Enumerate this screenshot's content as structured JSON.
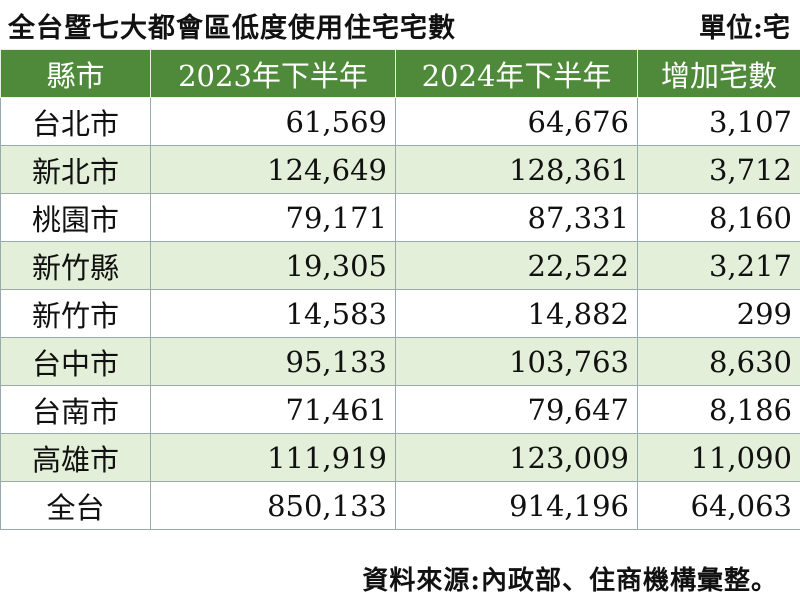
{
  "header": {
    "title": "全台暨七大都會區低度使用住宅宅數",
    "unit": "單位:宅"
  },
  "table": {
    "columns": [
      "縣市",
      "2023年下半年",
      "2024年下半年",
      "增加宅數"
    ],
    "rows": [
      [
        "台北市",
        "61,569",
        "64,676",
        "3,107"
      ],
      [
        "新北市",
        "124,649",
        "128,361",
        "3,712"
      ],
      [
        "桃園市",
        "79,171",
        "87,331",
        "8,160"
      ],
      [
        "新竹縣",
        "19,305",
        "22,522",
        "3,217"
      ],
      [
        "新竹市",
        "14,583",
        "14,882",
        "299"
      ],
      [
        "台中市",
        "95,133",
        "103,763",
        "8,630"
      ],
      [
        "台南市",
        "71,461",
        "79,647",
        "8,186"
      ],
      [
        "高雄市",
        "111,919",
        "123,009",
        "11,090"
      ],
      [
        "全台",
        "850,133",
        "914,196",
        "64,063"
      ]
    ]
  },
  "footer": {
    "source": "資料來源:內政部、住商機構彙整。"
  }
}
